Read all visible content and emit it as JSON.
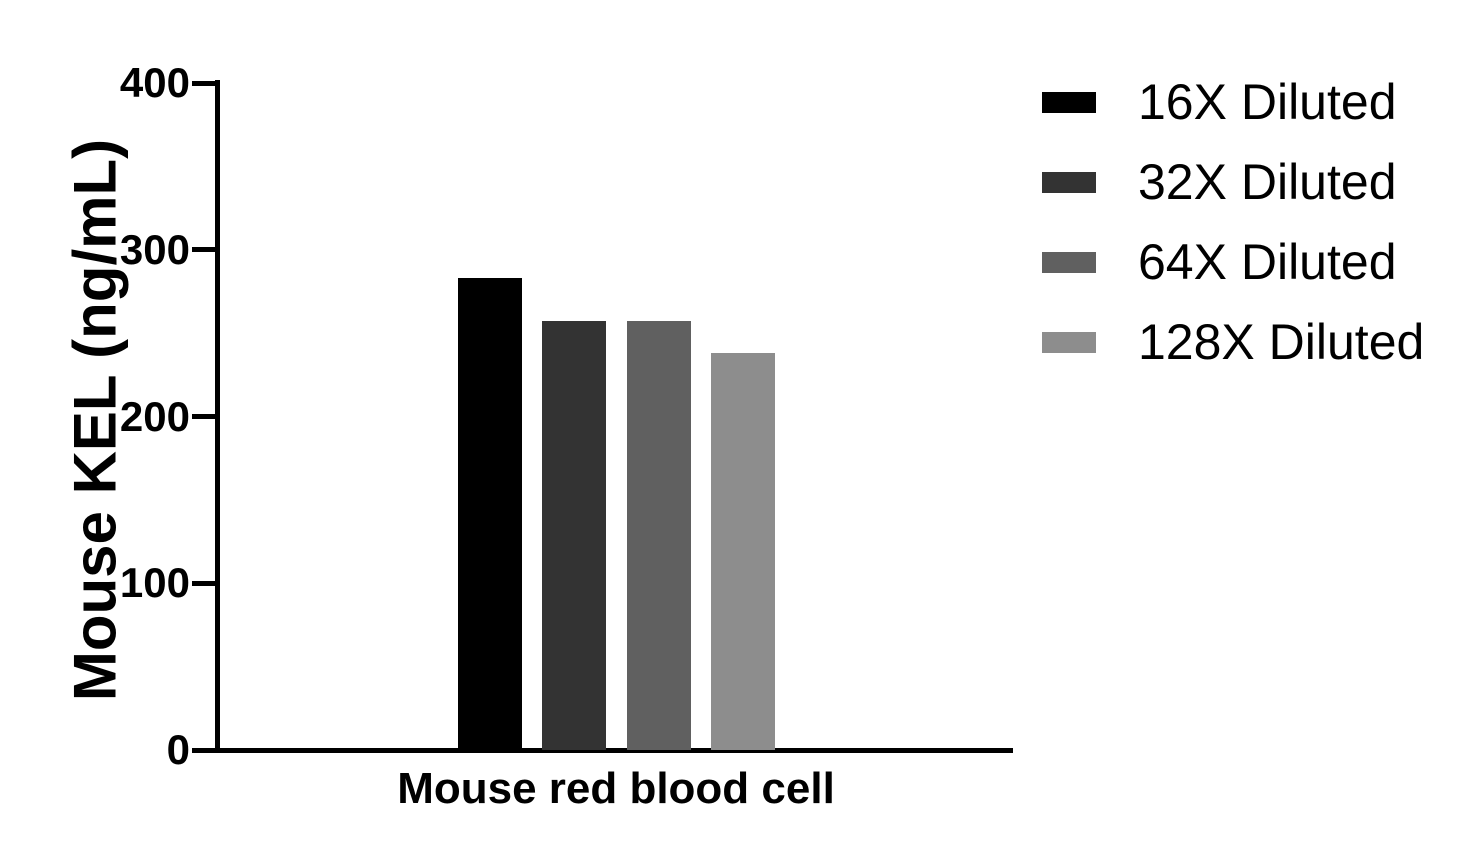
{
  "chart_data": {
    "type": "bar",
    "title": "",
    "ylabel": "Mouse KEL (ng/mL)",
    "xlabel": "",
    "categories": [
      "Mouse red blood cell"
    ],
    "ylim": [
      0,
      400
    ],
    "yticks": [
      0,
      100,
      200,
      300,
      400
    ],
    "grid": false,
    "legend_position": "right",
    "axis_color": "#000000",
    "background_color": "#ffffff",
    "series": [
      {
        "name": "16X Diluted",
        "values": [
          283
        ],
        "color": "#000000"
      },
      {
        "name": "32X Diluted",
        "values": [
          257
        ],
        "color": "#333333"
      },
      {
        "name": "64X Diluted",
        "values": [
          257
        ],
        "color": "#606060"
      },
      {
        "name": "128X Diluted",
        "values": [
          238
        ],
        "color": "#8d8d8d"
      }
    ]
  }
}
